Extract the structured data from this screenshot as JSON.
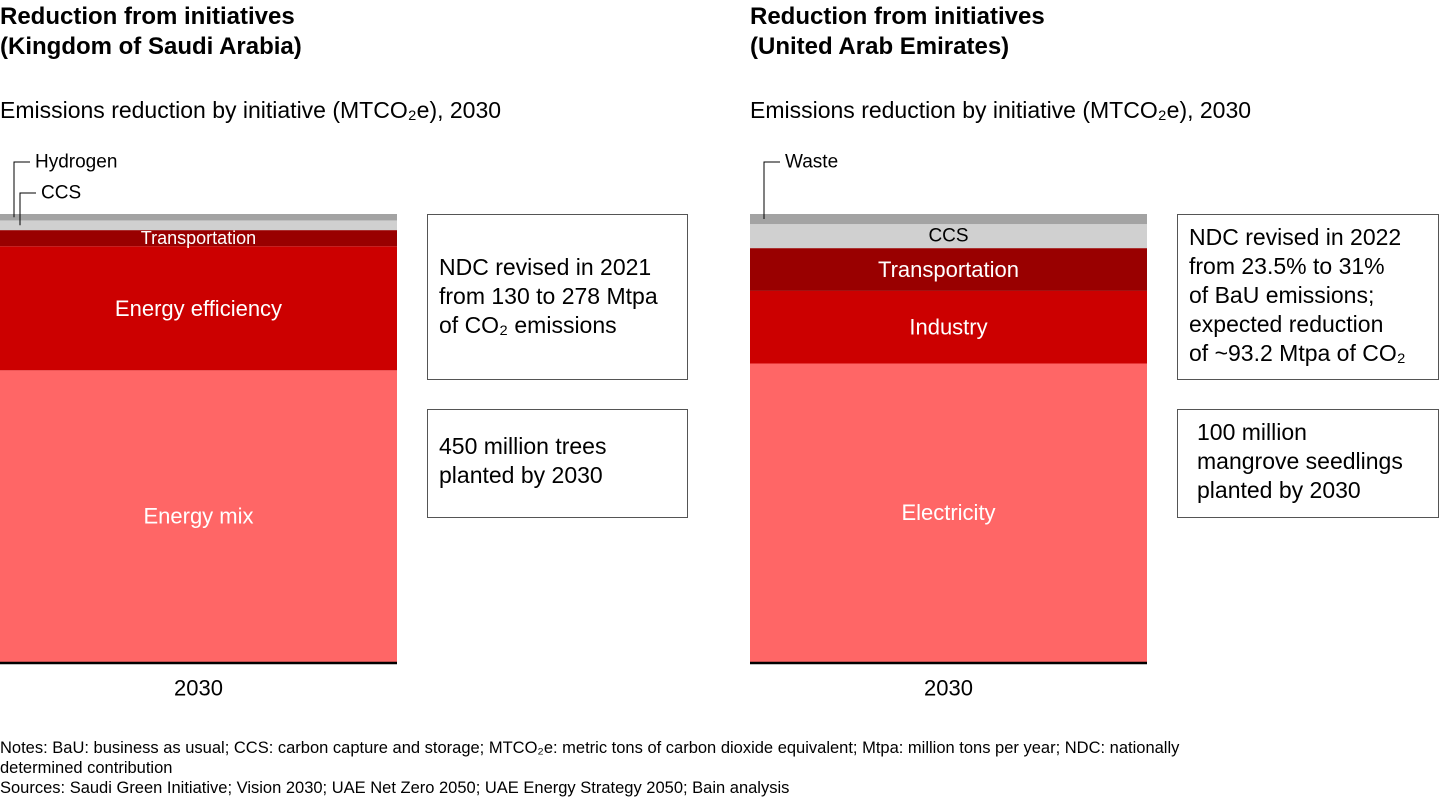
{
  "colors": {
    "energy_mix": "#ff6666",
    "energy_efficiency": "#cc0000",
    "transportation": "#990000",
    "ccs": "#d0d0d0",
    "hydrogen": "#a3a3a3",
    "axis": "#000000",
    "callout_border": "#555555"
  },
  "chart_data": [
    {
      "type": "bar",
      "title": "Reduction from initiatives",
      "subtitle_line": "(Kingdom of Saudi Arabia)",
      "description": "Emissions reduction by initiative (MTCO₂e), 2030",
      "categories": [
        "2030"
      ],
      "stacked": true,
      "ylim": [
        0,
        278
      ],
      "series": [
        {
          "name": "Energy mix",
          "values": [
            181
          ],
          "color": "#ff6666"
        },
        {
          "name": "Energy efficiency",
          "values": [
            77
          ],
          "color": "#cc0000"
        },
        {
          "name": "Transportation",
          "values": [
            10
          ],
          "color": "#990000"
        },
        {
          "name": "CCS",
          "values": [
            6
          ],
          "color": "#d0d0d0"
        },
        {
          "name": "Hydrogen",
          "values": [
            4
          ],
          "color": "#a3a3a3"
        }
      ],
      "callouts": [
        [
          "NDC revised in 2021",
          "from 130 to 278 Mtpa",
          "of CO₂ emissions"
        ],
        [
          "450 million trees",
          "planted by 2030"
        ]
      ]
    },
    {
      "type": "bar",
      "title": "Reduction from initiatives",
      "subtitle_line": "(United Arab Emirates)",
      "description": "Emissions reduction by initiative (MTCO₂e), 2030",
      "categories": [
        "2030"
      ],
      "stacked": true,
      "ylim": [
        0,
        93.2
      ],
      "series": [
        {
          "name": "Electricity",
          "values": [
            62.1
          ],
          "color": "#ff6666"
        },
        {
          "name": "Industry",
          "values": [
            15.1
          ],
          "color": "#cc0000"
        },
        {
          "name": "Transportation",
          "values": [
            8.9
          ],
          "color": "#990000"
        },
        {
          "name": "CCS",
          "values": [
            5.0
          ],
          "color": "#d0d0d0"
        },
        {
          "name": "Waste",
          "values": [
            2.1
          ],
          "color": "#a3a3a3"
        }
      ],
      "callouts": [
        [
          "NDC revised in 2022",
          "from 23.5% to 31%",
          "of BaU emissions;",
          "expected reduction",
          "of ~93.2 Mtpa of CO₂"
        ],
        [
          "100 million",
          "mangrove seedlings",
          "planted by 2030"
        ]
      ]
    }
  ],
  "notes": [
    "Notes: BaU: business as usual; CCS: carbon capture and storage; MTCO₂e: metric tons of carbon dioxide equivalent; Mtpa: million tons per year; NDC: nationally",
    "determined contribution",
    "Sources: Saudi Green Initiative; Vision 2030; UAE Net Zero 2050; UAE Energy Strategy 2050; Bain analysis"
  ]
}
